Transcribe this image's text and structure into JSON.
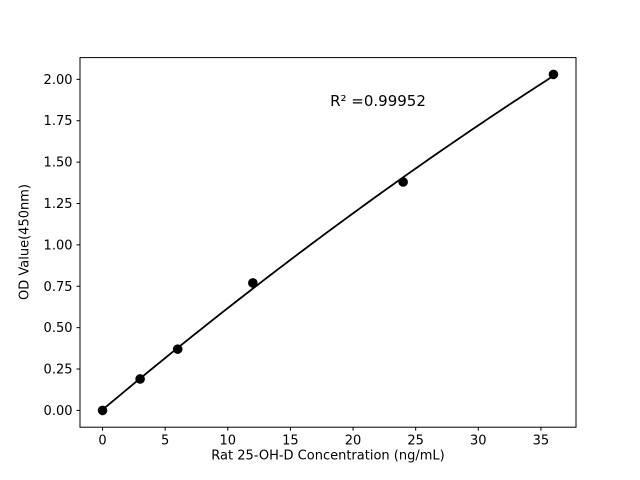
{
  "chart_data": {
    "type": "scatter",
    "xlabel": "Rat 25-OH-D Concentration (ng/mL)",
    "ylabel": "OD Value(450nm)",
    "annotation": "R² =0.99952",
    "x": [
      0,
      3,
      6,
      12,
      24,
      36
    ],
    "y": [
      0.0,
      0.19,
      0.37,
      0.77,
      1.38,
      2.03
    ],
    "fit": "quadratic",
    "xlim": [
      -1.8,
      37.8
    ],
    "ylim": [
      -0.1015,
      2.1315
    ],
    "xticks": [
      0,
      5,
      10,
      15,
      20,
      25,
      30,
      35
    ],
    "xtick_labels": [
      "0",
      "5",
      "10",
      "15",
      "20",
      "25",
      "30",
      "35"
    ],
    "yticks": [
      0.0,
      0.25,
      0.5,
      0.75,
      1.0,
      1.25,
      1.5,
      1.75,
      2.0
    ],
    "ytick_labels": [
      "0.00",
      "0.25",
      "0.50",
      "0.75",
      "1.00",
      "1.25",
      "1.50",
      "1.75",
      "2.00"
    ],
    "grid": false,
    "legend_visible": false,
    "colors": {
      "marker": "#000000",
      "line": "#000000",
      "text": "#000000",
      "background": "#ffffff"
    }
  }
}
